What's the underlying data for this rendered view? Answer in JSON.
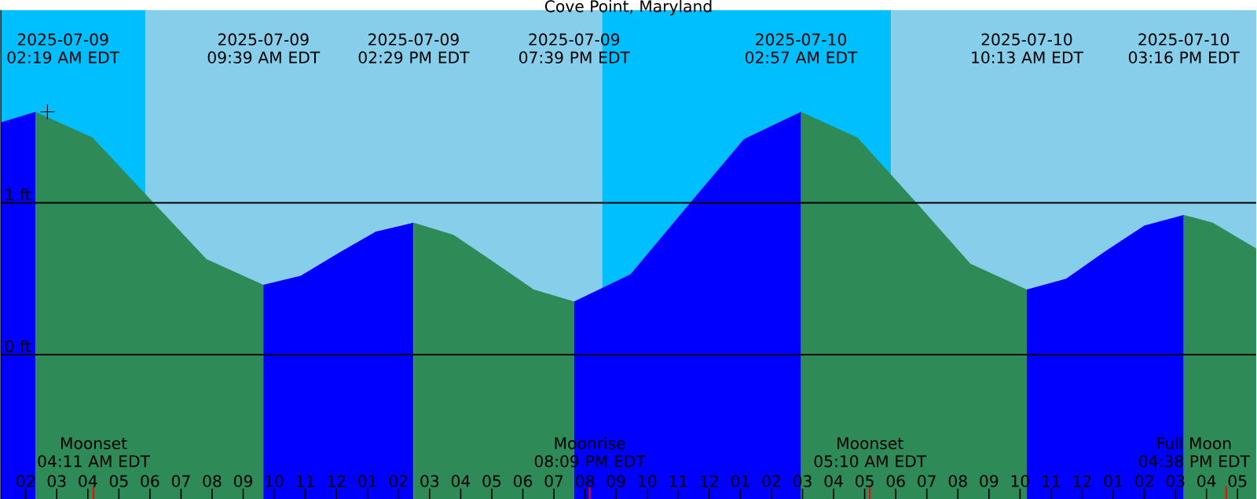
{
  "chart_data": {
    "type": "area",
    "title": "Cove Point, Maryland",
    "xlim": [
      "2025-07-09T01:12",
      "2025-07-10T17:36"
    ],
    "ylim": [
      -0.95,
      2.27
    ],
    "xticks": [
      {
        "value": "2025-07-09T02:00",
        "label": "02"
      },
      {
        "value": "2025-07-09T03:00",
        "label": "03"
      },
      {
        "value": "2025-07-09T04:00",
        "label": "04"
      },
      {
        "value": "2025-07-09T05:00",
        "label": "05"
      },
      {
        "value": "2025-07-09T06:00",
        "label": "06"
      },
      {
        "value": "2025-07-09T07:00",
        "label": "07"
      },
      {
        "value": "2025-07-09T08:00",
        "label": "08"
      },
      {
        "value": "2025-07-09T09:00",
        "label": "09"
      },
      {
        "value": "2025-07-09T10:00",
        "label": "10"
      },
      {
        "value": "2025-07-09T11:00",
        "label": "11"
      },
      {
        "value": "2025-07-09T12:00",
        "label": "12"
      },
      {
        "value": "2025-07-09T13:00",
        "label": "01"
      },
      {
        "value": "2025-07-09T14:00",
        "label": "02"
      },
      {
        "value": "2025-07-09T15:00",
        "label": "03"
      },
      {
        "value": "2025-07-09T16:00",
        "label": "04"
      },
      {
        "value": "2025-07-09T17:00",
        "label": "05"
      },
      {
        "value": "2025-07-09T18:00",
        "label": "06"
      },
      {
        "value": "2025-07-09T19:00",
        "label": "07"
      },
      {
        "value": "2025-07-09T20:00",
        "label": "08"
      },
      {
        "value": "2025-07-09T21:00",
        "label": "09"
      },
      {
        "value": "2025-07-09T22:00",
        "label": "10"
      },
      {
        "value": "2025-07-09T23:00",
        "label": "11"
      },
      {
        "value": "2025-07-10T00:00",
        "label": "12"
      },
      {
        "value": "2025-07-10T01:00",
        "label": "01"
      },
      {
        "value": "2025-07-10T02:00",
        "label": "02"
      },
      {
        "value": "2025-07-10T03:00",
        "label": "03"
      },
      {
        "value": "2025-07-10T04:00",
        "label": "04"
      },
      {
        "value": "2025-07-10T05:00",
        "label": "05"
      },
      {
        "value": "2025-07-10T06:00",
        "label": "06"
      },
      {
        "value": "2025-07-10T07:00",
        "label": "07"
      },
      {
        "value": "2025-07-10T08:00",
        "label": "08"
      },
      {
        "value": "2025-07-10T09:00",
        "label": "09"
      },
      {
        "value": "2025-07-10T10:00",
        "label": "10"
      },
      {
        "value": "2025-07-10T11:00",
        "label": "11"
      },
      {
        "value": "2025-07-10T12:00",
        "label": "12"
      },
      {
        "value": "2025-07-10T13:00",
        "label": "01"
      },
      {
        "value": "2025-07-10T14:00",
        "label": "02"
      },
      {
        "value": "2025-07-10T15:00",
        "label": "03"
      },
      {
        "value": "2025-07-10T16:00",
        "label": "04"
      },
      {
        "value": "2025-07-10T17:00",
        "label": "05"
      }
    ],
    "yticks": [
      {
        "value": 0,
        "label": "0 ft"
      },
      {
        "value": 1,
        "label": "1 ft"
      }
    ],
    "grid": "y",
    "bands": [
      {
        "axis": "x",
        "from": "2025-07-09T01:12",
        "to": "2025-07-09T05:51",
        "color": "#00bfff"
      },
      {
        "axis": "x",
        "from": "2025-07-09T05:51",
        "to": "2025-07-09T20:33",
        "color": "#87ceeb"
      },
      {
        "axis": "x",
        "from": "2025-07-09T20:33",
        "to": "2025-07-10T05:51",
        "color": "#00bfff"
      },
      {
        "axis": "x",
        "from": "2025-07-10T05:51",
        "to": "2025-07-10T17:36",
        "color": "#87ceeb"
      }
    ],
    "ref_lines": [
      {
        "axis": "x",
        "value": "2025-07-09T04:11",
        "label": "Moonset 04:11 AM EDT",
        "color": "#ff0000"
      },
      {
        "axis": "x",
        "value": "2025-07-09T20:09",
        "label": "Moonrise 08:09 PM EDT",
        "color": "#ff0000"
      },
      {
        "axis": "x",
        "value": "2025-07-10T05:10",
        "label": "Moonset 05:10 AM EDT",
        "color": "#ff0000"
      },
      {
        "axis": "x",
        "value": "2025-07-10T16:38",
        "label": "Full Moon 04:38 PM EDT",
        "color": "#ff0000"
      }
    ],
    "series": [
      {
        "color": "#0000ff",
        "x": [
          "2025-07-09T01:12",
          "2025-07-09T02:19"
        ],
        "values": [
          1.53,
          1.6
        ]
      },
      {
        "color": "#2e8b57",
        "x": [
          "2025-07-09T02:19",
          "2025-07-09T04:09",
          "2025-07-09T05:59",
          "2025-07-09T07:49",
          "2025-07-09T09:39"
        ],
        "values": [
          1.6,
          1.43,
          1.03,
          0.63,
          0.46
        ]
      },
      {
        "color": "#0000ff",
        "x": [
          "2025-07-09T09:39",
          "2025-07-09T10:51",
          "2025-07-09T12:04",
          "2025-07-09T13:16",
          "2025-07-09T14:29"
        ],
        "values": [
          0.46,
          0.52,
          0.67,
          0.81,
          0.87
        ]
      },
      {
        "color": "#2e8b57",
        "x": [
          "2025-07-09T14:29",
          "2025-07-09T15:46",
          "2025-07-09T17:04",
          "2025-07-09T18:21",
          "2025-07-09T19:39"
        ],
        "values": [
          0.87,
          0.79,
          0.61,
          0.43,
          0.35
        ]
      },
      {
        "color": "#0000ff",
        "x": [
          "2025-07-09T19:39",
          "2025-07-09T21:28",
          "2025-07-09T23:18",
          "2025-07-10T01:07",
          "2025-07-10T02:57"
        ],
        "values": [
          0.35,
          0.53,
          0.98,
          1.42,
          1.6
        ]
      },
      {
        "color": "#2e8b57",
        "x": [
          "2025-07-10T02:57",
          "2025-07-10T04:46",
          "2025-07-10T06:35",
          "2025-07-10T08:24",
          "2025-07-10T10:13"
        ],
        "values": [
          1.6,
          1.43,
          1.02,
          0.6,
          0.43
        ]
      },
      {
        "color": "#0000ff",
        "x": [
          "2025-07-10T10:13",
          "2025-07-10T11:29",
          "2025-07-10T12:44",
          "2025-07-10T14:00",
          "2025-07-10T15:16"
        ],
        "values": [
          0.43,
          0.5,
          0.68,
          0.85,
          0.92
        ]
      },
      {
        "color": "#2e8b57",
        "x": [
          "2025-07-10T15:16",
          "2025-07-10T16:12",
          "2025-07-10T17:36"
        ],
        "values": [
          0.92,
          0.87,
          0.7
        ]
      },
      {
        "type": "scatter",
        "color": "#000000",
        "marker": "cross",
        "x": [
          "2025-07-09T02:42"
        ],
        "values": [
          1.6
        ]
      }
    ],
    "annotations": [
      "2025-07-09 02:19 AM EDT",
      "2025-07-09 09:39 AM EDT",
      "2025-07-09 02:29 PM EDT",
      "2025-07-09 07:39 PM EDT",
      "2025-07-10 02:57 AM EDT",
      "2025-07-10 10:13 AM EDT",
      "2025-07-10 03:16 PM EDT"
    ]
  }
}
